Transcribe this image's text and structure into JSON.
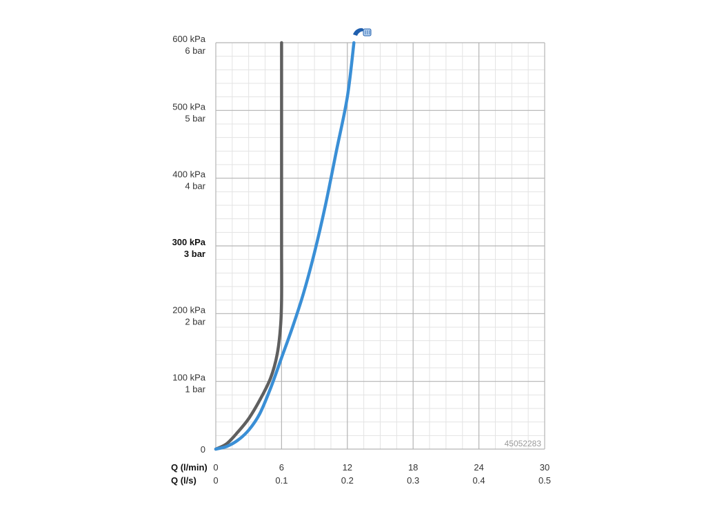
{
  "chart_data": {
    "type": "line",
    "product_id": "45052283",
    "x_axis": {
      "primary_label": "Q (l/min)",
      "secondary_label": "Q (l/s)",
      "ticks": [
        0,
        6,
        12,
        18,
        24,
        30
      ],
      "tick_labels_primary": [
        "0",
        "6",
        "12",
        "18",
        "24",
        "30"
      ],
      "tick_labels_secondary": [
        "0",
        "0.1",
        "0.2",
        "0.3",
        "0.4",
        "0.5"
      ],
      "range": [
        0,
        30
      ]
    },
    "y_axis": {
      "ticks": [
        0,
        100,
        200,
        300,
        400,
        500,
        600
      ],
      "tick_labels_kpa": [
        "0",
        "100 kPa",
        "200 kPa",
        "300 kPa",
        "400 kPa",
        "500 kPa",
        "600 kPa"
      ],
      "tick_labels_bar": [
        "",
        "1 bar",
        "2 bar",
        "3 bar",
        "4 bar",
        "5 bar",
        "6 bar"
      ],
      "bold_tick": 300,
      "range": [
        0,
        600
      ],
      "unit": "kPa"
    },
    "grid": true,
    "series": [
      {
        "color": "#5f5f5f",
        "points": [
          [
            0,
            0
          ],
          [
            1,
            8
          ],
          [
            2,
            25
          ],
          [
            3,
            45
          ],
          [
            4,
            72
          ],
          [
            5,
            105
          ],
          [
            5.6,
            140
          ],
          [
            5.9,
            180
          ],
          [
            6,
            220
          ],
          [
            6,
            300
          ],
          [
            6,
            400
          ],
          [
            6,
            500
          ],
          [
            6,
            600
          ]
        ]
      },
      {
        "color": "#3a8fd6",
        "points": [
          [
            0,
            0
          ],
          [
            1,
            4
          ],
          [
            2,
            13
          ],
          [
            3,
            28
          ],
          [
            4,
            52
          ],
          [
            5,
            90
          ],
          [
            6,
            135
          ],
          [
            7,
            180
          ],
          [
            8,
            230
          ],
          [
            9,
            290
          ],
          [
            10,
            360
          ],
          [
            11,
            440
          ],
          [
            12,
            520
          ],
          [
            12.6,
            600
          ]
        ]
      }
    ],
    "icon": "shower-head-icon"
  }
}
